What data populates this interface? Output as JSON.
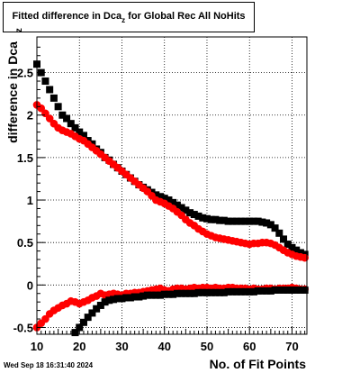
{
  "title": {
    "main": "Fitted difference in Dca",
    "sub": "z",
    "rest": "  for Global Rec All NoHits"
  },
  "datestamp": "Wed Sep 18 16:31:40 2024",
  "colors": {
    "series_black": "#000000",
    "series_red": "#ff0000",
    "grid": "#000000"
  },
  "chart_data": {
    "type": "scatter",
    "title": "Fitted difference in Dca_z for Global Rec All NoHits",
    "xlabel": "No. of Fit Points",
    "ylabel": "difference in Dca_z",
    "xlim": [
      10,
      73.5
    ],
    "ylim": [
      -0.58,
      2.92
    ],
    "grid": true,
    "x_ticks": [
      10,
      20,
      30,
      40,
      50,
      60,
      70
    ],
    "y_ticks": [
      -0.5,
      0,
      0.5,
      1,
      1.5,
      2,
      2.5
    ],
    "x_tick_labels": [
      "10",
      "20",
      "30",
      "40",
      "50",
      "60",
      "70"
    ],
    "y_tick_labels": [
      "-0.5",
      "0",
      "0.5",
      "1",
      "1.5",
      "2",
      "2.5"
    ],
    "series": [
      {
        "color": "#000000",
        "marker": "square",
        "x": [
          10,
          11,
          12,
          13,
          14,
          15,
          16,
          17,
          18,
          19,
          20,
          21,
          22,
          23,
          24,
          25,
          26,
          27,
          28,
          29,
          30,
          31,
          32,
          33,
          34,
          35,
          36,
          37,
          38,
          39,
          40,
          41,
          42,
          43,
          44,
          45,
          46,
          47,
          48,
          49,
          50,
          51,
          52,
          53,
          54,
          55,
          56,
          57,
          58,
          59,
          60,
          61,
          62,
          63,
          64,
          65,
          66,
          67,
          68,
          69,
          70,
          71,
          72,
          73
        ],
        "y": [
          2.6,
          2.5,
          2.4,
          2.3,
          2.2,
          2.1,
          2.0,
          1.96,
          1.9,
          1.85,
          1.8,
          1.76,
          1.7,
          1.66,
          1.6,
          1.56,
          1.5,
          1.47,
          1.42,
          1.38,
          1.34,
          1.3,
          1.26,
          1.22,
          1.18,
          1.15,
          1.12,
          1.09,
          1.06,
          1.04,
          1.02,
          1.0,
          0.97,
          0.94,
          0.91,
          0.88,
          0.85,
          0.83,
          0.81,
          0.79,
          0.78,
          0.77,
          0.77,
          0.76,
          0.76,
          0.75,
          0.75,
          0.75,
          0.75,
          0.75,
          0.75,
          0.75,
          0.75,
          0.74,
          0.73,
          0.71,
          0.67,
          0.61,
          0.54,
          0.48,
          0.44,
          0.41,
          0.38,
          0.36
        ]
      },
      {
        "color": "#ff0000",
        "marker": "diamond",
        "x": [
          10,
          11,
          12,
          13,
          14,
          15,
          16,
          17,
          18,
          19,
          20,
          21,
          22,
          23,
          24,
          25,
          26,
          27,
          28,
          29,
          30,
          31,
          32,
          33,
          34,
          35,
          36,
          37,
          38,
          39,
          40,
          41,
          42,
          43,
          44,
          45,
          46,
          47,
          48,
          49,
          50,
          51,
          52,
          53,
          54,
          55,
          56,
          57,
          58,
          59,
          60,
          61,
          62,
          63,
          64,
          65,
          66,
          67,
          68,
          69,
          70,
          71,
          72,
          73
        ],
        "y": [
          2.12,
          2.08,
          2.02,
          1.96,
          1.9,
          1.85,
          1.82,
          1.8,
          1.78,
          1.75,
          1.72,
          1.7,
          1.66,
          1.62,
          1.58,
          1.54,
          1.5,
          1.46,
          1.42,
          1.38,
          1.34,
          1.3,
          1.26,
          1.22,
          1.18,
          1.14,
          1.1,
          1.05,
          1.0,
          0.98,
          0.96,
          0.93,
          0.9,
          0.86,
          0.82,
          0.77,
          0.73,
          0.7,
          0.66,
          0.63,
          0.6,
          0.58,
          0.56,
          0.55,
          0.54,
          0.53,
          0.52,
          0.51,
          0.5,
          0.49,
          0.48,
          0.49,
          0.49,
          0.5,
          0.5,
          0.49,
          0.47,
          0.44,
          0.41,
          0.38,
          0.36,
          0.34,
          0.33,
          0.32
        ]
      },
      {
        "color": "#ff0000",
        "marker": "diamond",
        "x": [
          10,
          11,
          12,
          13,
          14,
          15,
          16,
          17,
          18,
          19,
          20,
          21,
          22,
          23,
          24,
          25,
          26,
          27,
          28,
          29,
          30,
          31,
          32,
          33,
          34,
          35,
          36,
          37,
          38,
          39,
          40,
          41,
          42,
          43,
          44,
          45,
          46,
          47,
          48,
          49,
          50,
          51,
          52,
          53,
          54,
          55,
          56,
          57,
          58,
          59,
          60,
          61,
          62,
          63,
          64,
          65,
          66,
          67,
          68,
          69,
          70,
          71,
          72,
          73
        ],
        "y": [
          -0.5,
          -0.45,
          -0.4,
          -0.34,
          -0.3,
          -0.27,
          -0.24,
          -0.22,
          -0.19,
          -0.2,
          -0.22,
          -0.2,
          -0.18,
          -0.15,
          -0.13,
          -0.1,
          -0.12,
          -0.11,
          -0.1,
          -0.11,
          -0.12,
          -0.1,
          -0.1,
          -0.09,
          -0.09,
          -0.08,
          -0.07,
          -0.06,
          -0.05,
          -0.04,
          -0.06,
          -0.07,
          -0.05,
          -0.04,
          -0.04,
          -0.05,
          -0.04,
          -0.03,
          -0.04,
          -0.03,
          -0.03,
          -0.04,
          -0.03,
          -0.04,
          -0.04,
          -0.03,
          -0.03,
          -0.04,
          -0.04,
          -0.04,
          -0.05,
          -0.04,
          -0.05,
          -0.05,
          -0.04,
          -0.04,
          -0.05,
          -0.04,
          -0.04,
          -0.04,
          -0.03,
          -0.04,
          -0.05,
          -0.05
        ]
      },
      {
        "color": "#000000",
        "marker": "square",
        "x": [
          19,
          20,
          21,
          22,
          23,
          24,
          25,
          26,
          27,
          28,
          29,
          30,
          31,
          32,
          33,
          34,
          35,
          36,
          37,
          38,
          39,
          40,
          41,
          42,
          43,
          44,
          45,
          46,
          47,
          48,
          49,
          50,
          51,
          52,
          53,
          54,
          55,
          56,
          57,
          58,
          59,
          60,
          61,
          62,
          63,
          64,
          65,
          66,
          67,
          68,
          69,
          70,
          71,
          72,
          73
        ],
        "y": [
          -0.56,
          -0.5,
          -0.44,
          -0.38,
          -0.33,
          -0.28,
          -0.24,
          -0.2,
          -0.18,
          -0.17,
          -0.16,
          -0.16,
          -0.15,
          -0.15,
          -0.14,
          -0.14,
          -0.13,
          -0.12,
          -0.12,
          -0.12,
          -0.12,
          -0.11,
          -0.11,
          -0.11,
          -0.1,
          -0.1,
          -0.1,
          -0.1,
          -0.1,
          -0.09,
          -0.09,
          -0.09,
          -0.09,
          -0.09,
          -0.09,
          -0.09,
          -0.08,
          -0.08,
          -0.08,
          -0.08,
          -0.08,
          -0.08,
          -0.08,
          -0.07,
          -0.07,
          -0.07,
          -0.07,
          -0.06,
          -0.06,
          -0.06,
          -0.06,
          -0.06,
          -0.06,
          -0.06,
          -0.06
        ]
      }
    ]
  }
}
